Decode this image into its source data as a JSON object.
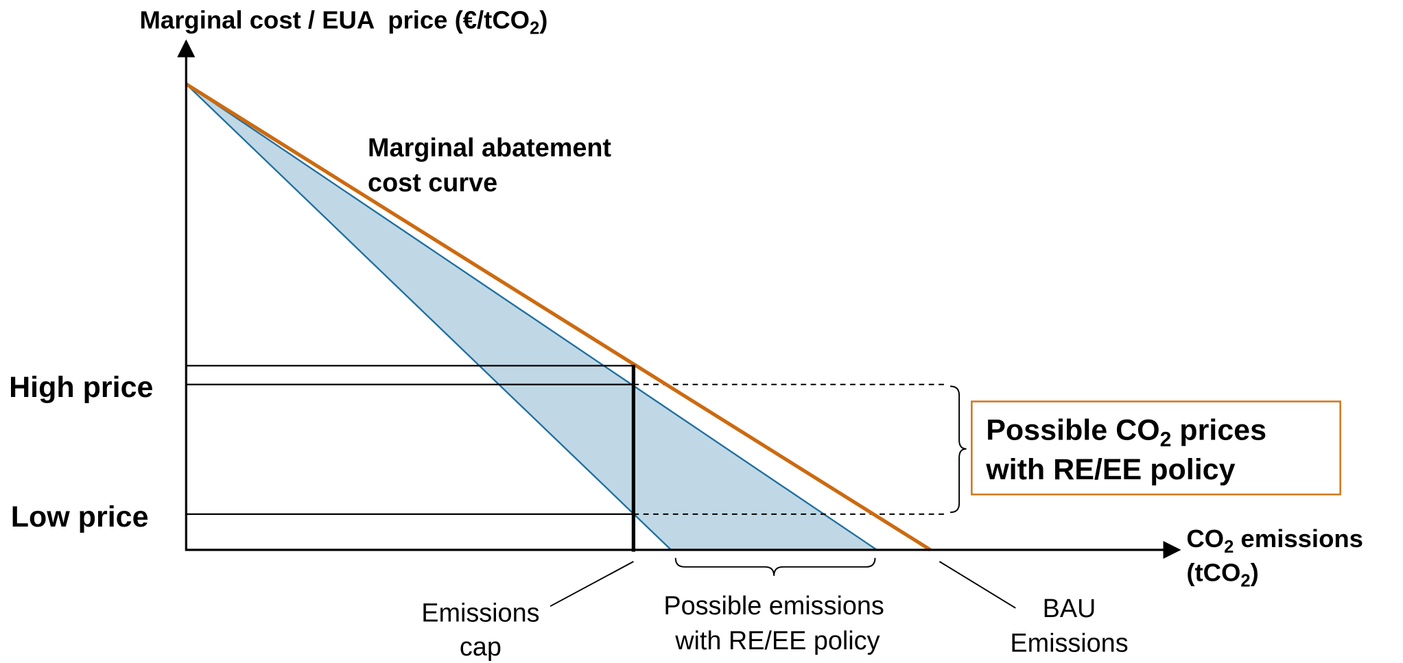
{
  "y_axis_label": {
    "text": "Marginal cost / EUA  price (€/tCO",
    "sub": "2",
    "end": ")"
  },
  "x_axis_label": {
    "line1": {
      "text": "CO",
      "sub": "2",
      "end": " emissions"
    },
    "line2": {
      "text": "(tCO",
      "sub": "2",
      "end": ")"
    }
  },
  "price_levels": {
    "high": "High price",
    "low": "Low price"
  },
  "curve_label": [
    "Marginal abatement",
    "cost curve"
  ],
  "price_box": {
    "line1": {
      "text": "Possible CO",
      "sub": "2",
      "end": " prices"
    },
    "line2": "with RE/EE policy"
  },
  "annotations": {
    "emissions_cap": [
      "Emissions",
      "cap"
    ],
    "possible_emissions": [
      "Possible emissions",
      "with RE/EE policy"
    ],
    "bau": [
      "BAU",
      "Emissions"
    ]
  }
}
